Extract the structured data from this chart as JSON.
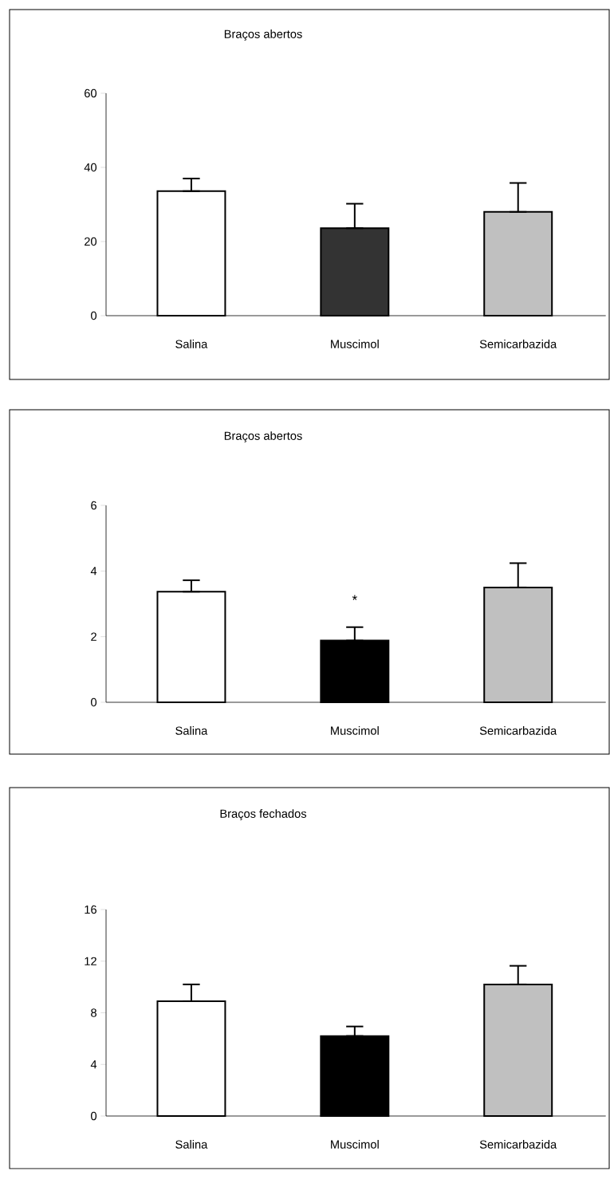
{
  "chart_data": [
    {
      "type": "bar",
      "title": "Braços abertos",
      "categories": [
        "Salina",
        "Muscimol",
        "Semicarbazida"
      ],
      "values": [
        33.6,
        23.6,
        28.0
      ],
      "colors": [
        "#ffffff",
        "#333333",
        "#c0c0c0"
      ],
      "errors": [
        [
          33.6,
          37.0
        ],
        [
          23.6,
          30.2
        ],
        [
          28.0,
          35.8
        ]
      ],
      "ylim": [
        0,
        60
      ],
      "yticks": [
        0,
        20,
        40,
        60
      ]
    },
    {
      "type": "bar",
      "title": "Braços abertos",
      "categories": [
        "Salina",
        "Muscimol",
        "Semicarbazida"
      ],
      "values": [
        3.37,
        1.88,
        3.5
      ],
      "colors": [
        "#ffffff",
        "#000000",
        "#c0c0c0"
      ],
      "errors": [
        [
          3.37,
          3.72
        ],
        [
          1.88,
          2.29
        ],
        [
          3.5,
          4.24
        ]
      ],
      "ylim": [
        0,
        6
      ],
      "yticks": [
        0,
        2,
        4,
        6
      ],
      "annotations": [
        "*"
      ]
    },
    {
      "type": "bar",
      "title": "Braços fechados",
      "categories": [
        "Salina",
        "Muscimol",
        "Semicarbazida"
      ],
      "values": [
        8.9,
        6.2,
        10.2
      ],
      "colors": [
        "#ffffff",
        "#000000",
        "#c0c0c0"
      ],
      "errors": [
        [
          8.9,
          10.2
        ],
        [
          6.2,
          6.94
        ],
        [
          10.2,
          11.64
        ]
      ],
      "ylim": [
        0,
        16
      ],
      "yticks": [
        0,
        4,
        8,
        12,
        16
      ]
    }
  ]
}
